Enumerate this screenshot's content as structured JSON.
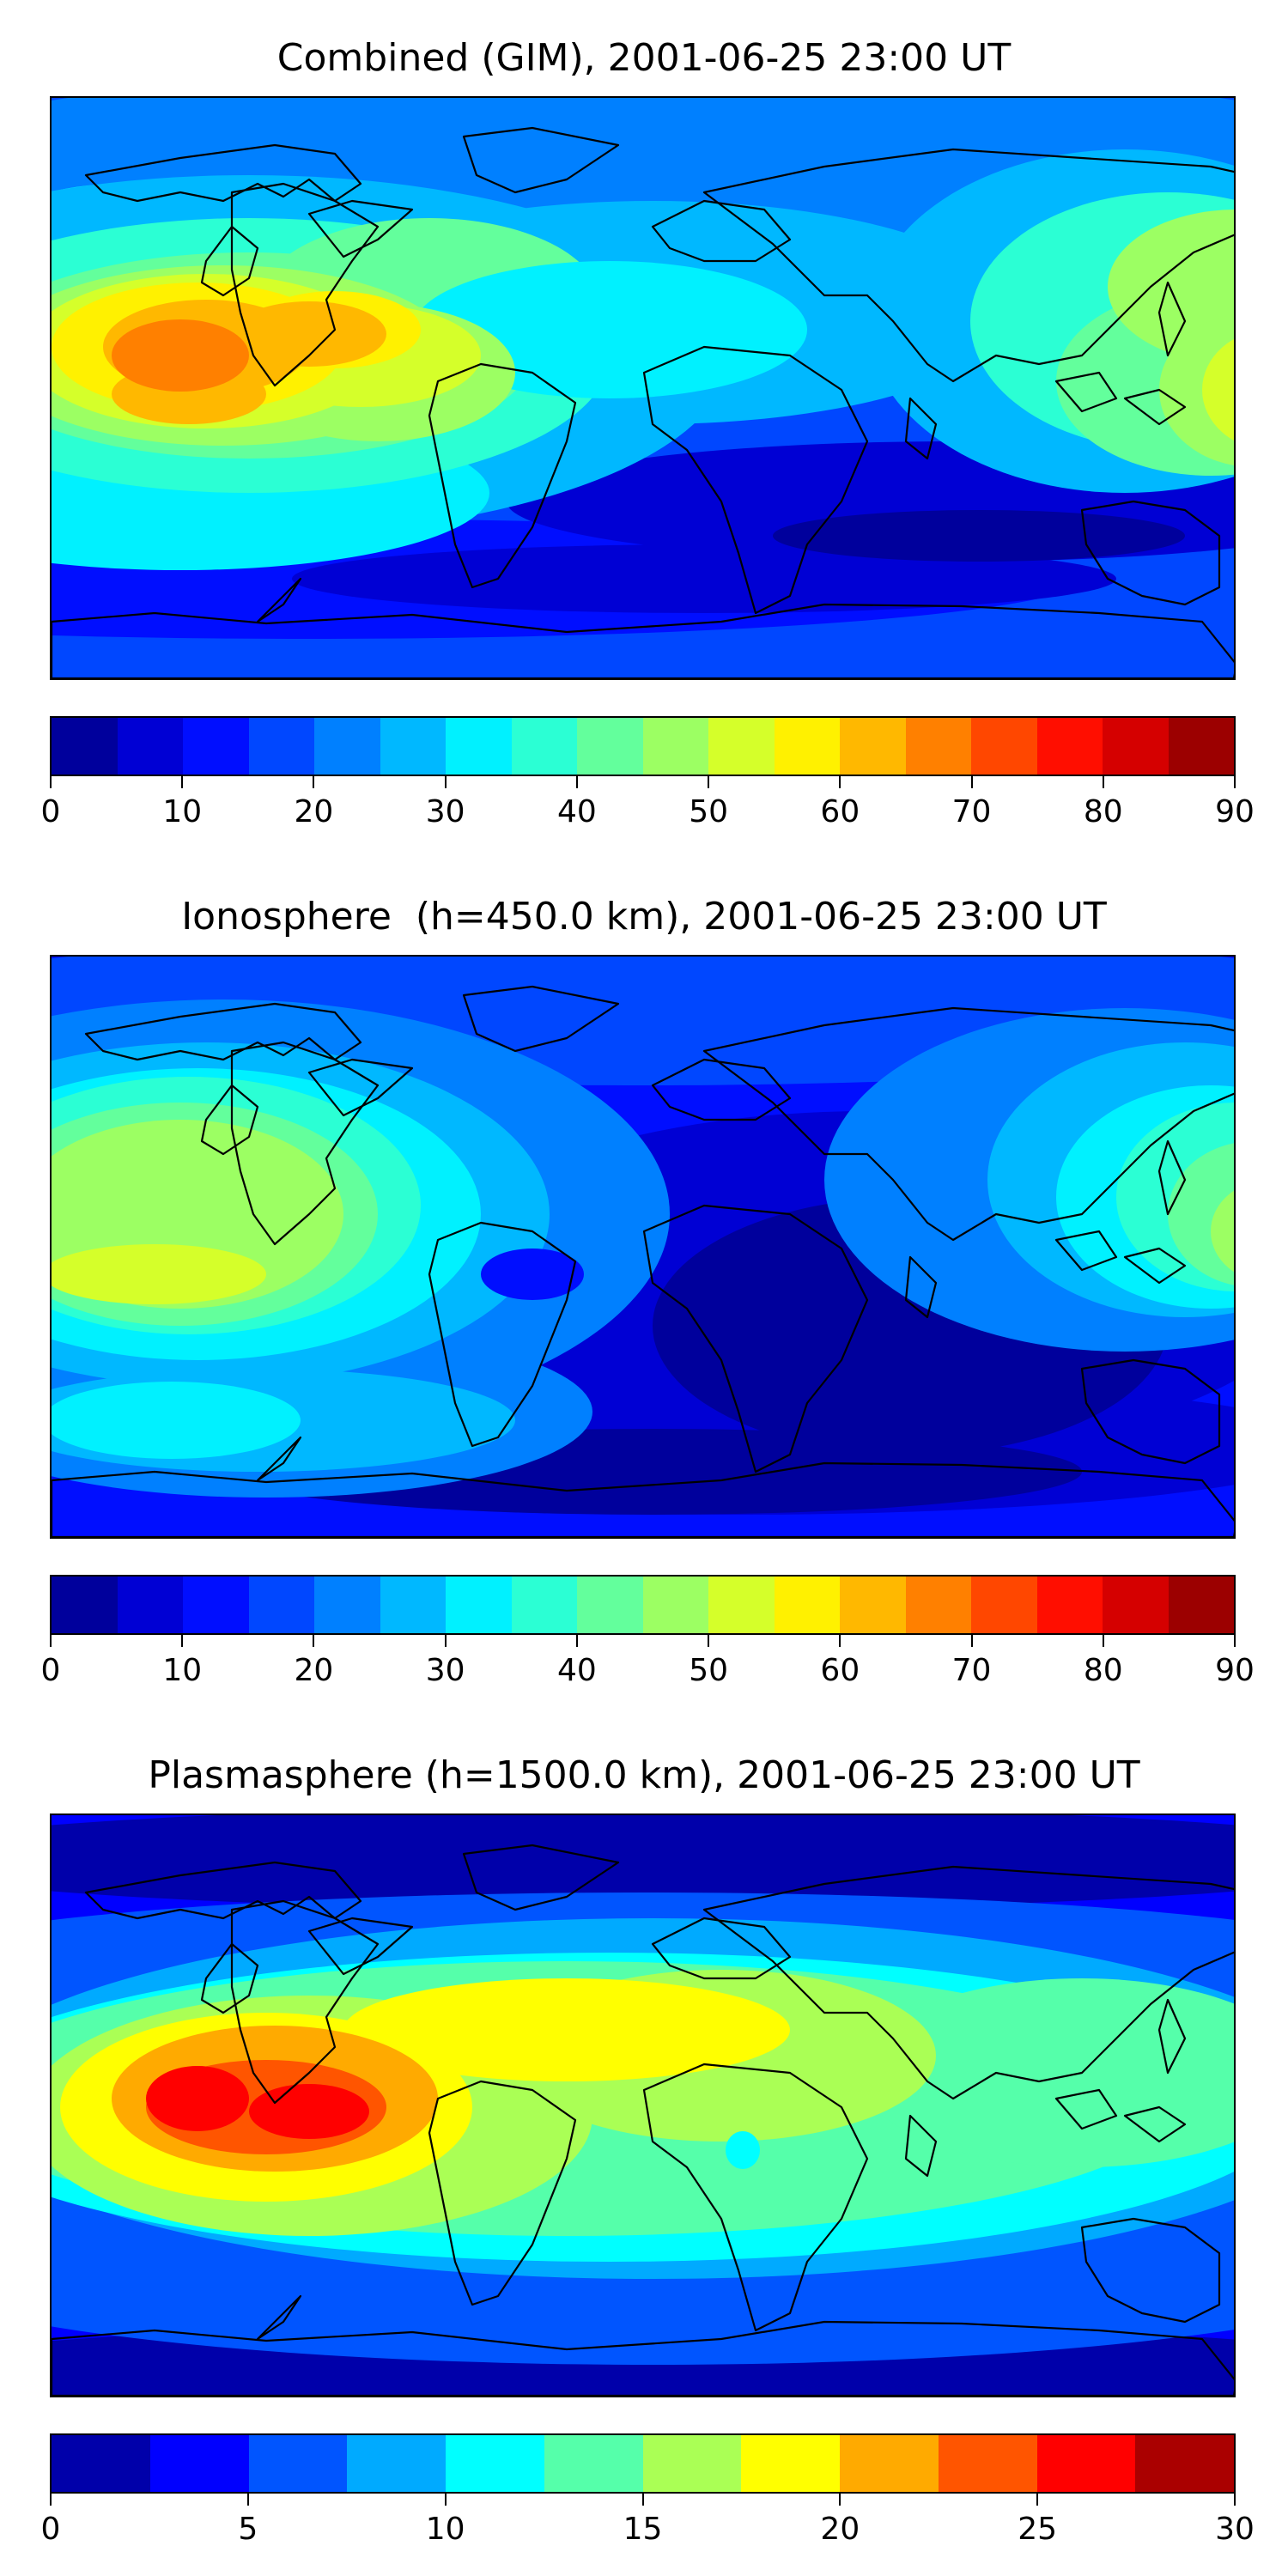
{
  "panels": [
    {
      "title": "Combined (GIM), 2001-06-25 23:00 UT",
      "colorbar_ticks": [
        "0",
        "10",
        "20",
        "30",
        "40",
        "50",
        "60",
        "70",
        "80",
        "90"
      ],
      "levels": 18,
      "field": "combined"
    },
    {
      "title": "Ionosphere  (h=450.0 km), 2001-06-25 23:00 UT",
      "colorbar_ticks": [
        "0",
        "10",
        "20",
        "30",
        "40",
        "50",
        "60",
        "70",
        "80",
        "90"
      ],
      "levels": 18,
      "field": "ionosphere"
    },
    {
      "title": "Plasmasphere (h=1500.0 km), 2001-06-25 23:00 UT",
      "colorbar_ticks": [
        "0",
        "5",
        "10",
        "15",
        "20",
        "25",
        "30"
      ],
      "levels": 12,
      "field": "plasmasphere"
    }
  ],
  "colormap": "jet",
  "colors": {
    "coastline": "#000000"
  }
}
